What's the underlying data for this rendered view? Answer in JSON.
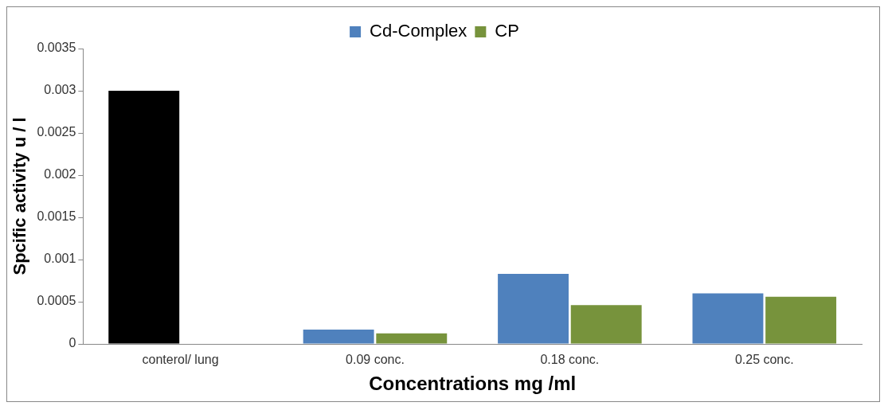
{
  "chart_data": {
    "type": "bar",
    "xlabel": "Concentrations mg /ml",
    "ylabel": "Spcific activity u / l",
    "categories": [
      "conterol/ lung",
      "0.09 conc.",
      "0.18 conc.",
      "0.25 conc."
    ],
    "series": [
      {
        "name": "Cd-Complex",
        "color": "#4f81bd",
        "colors": [
          "#000000",
          "#4f81bd",
          "#4f81bd",
          "#4f81bd"
        ],
        "values": [
          0.003,
          0.00017,
          0.00083,
          0.0006
        ]
      },
      {
        "name": "CP",
        "color": "#77933c",
        "values": [
          null,
          0.000125,
          0.00046,
          0.00056
        ]
      }
    ],
    "ylim": [
      0,
      0.0035
    ],
    "yticks": [
      0,
      0.0005,
      0.001,
      0.0015,
      0.002,
      0.0025,
      0.003,
      0.0035
    ],
    "grid": false,
    "legend": "top"
  }
}
